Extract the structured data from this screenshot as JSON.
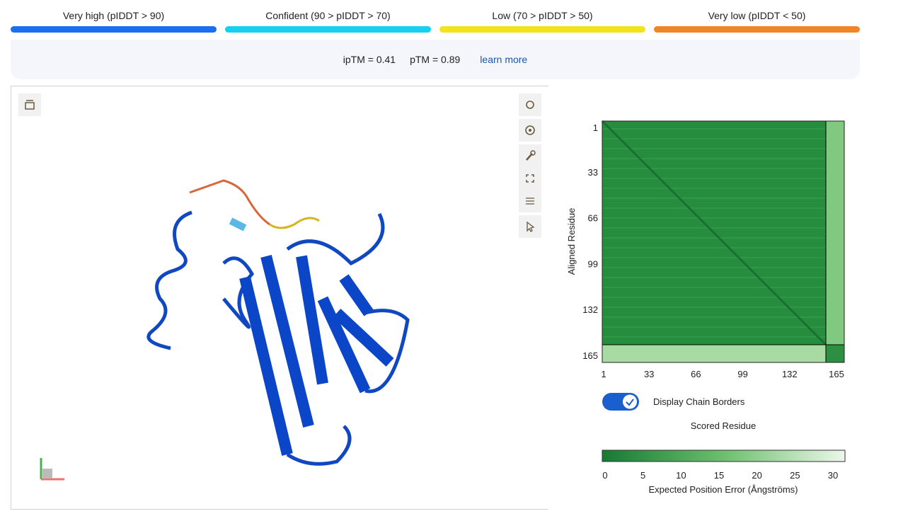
{
  "legend": [
    {
      "label": "Very high (pIDDT > 90)",
      "color": "#1b6ef0"
    },
    {
      "label": "Confident (90 > pIDDT > 70)",
      "color": "#17cfee"
    },
    {
      "label": "Low (70 > pIDDT > 50)",
      "color": "#f3e31b"
    },
    {
      "label": "Very low (pIDDT < 50)",
      "color": "#ef8526"
    }
  ],
  "metrics": {
    "iptm": "ipTM = 0.41",
    "ptm": "pTM = 0.89",
    "link": "learn more"
  },
  "pae": {
    "y_label": "Aligned Residue",
    "x_label": "Scored Residue",
    "ticks": [
      1,
      33,
      66,
      99,
      132,
      165
    ],
    "toggle_label": "Display Chain Borders",
    "colorbar_ticks": [
      0,
      5,
      10,
      15,
      20,
      25,
      30
    ],
    "colorbar_label": "Expected Position Error (Ångströms)"
  }
}
